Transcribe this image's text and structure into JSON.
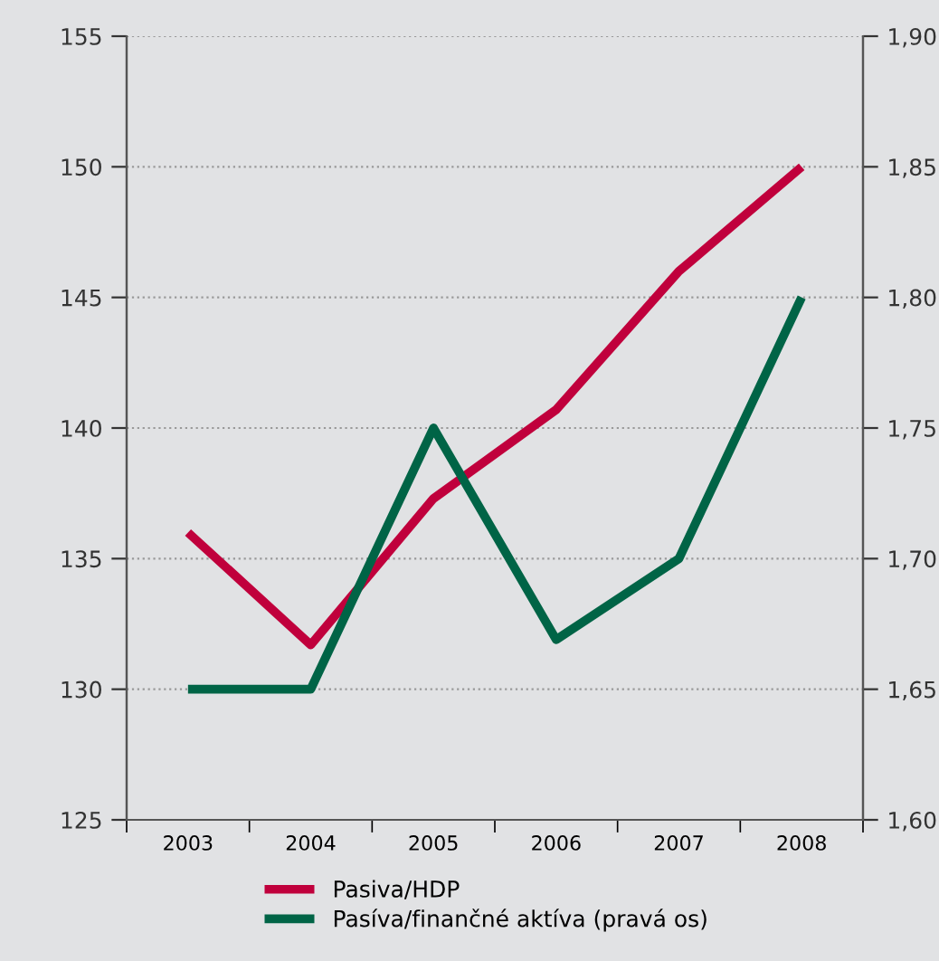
{
  "chart_data": {
    "type": "line",
    "categories": [
      "2003",
      "2004",
      "2005",
      "2006",
      "2007",
      "2008"
    ],
    "series": [
      {
        "name": "Pasiva/HDP",
        "color": "#c0003c",
        "values": [
          136.0,
          131.7,
          137.3,
          140.7,
          146.0,
          150.0
        ]
      },
      {
        "name": "Pasíva/finančné aktíva (pravá os)",
        "color": "#006446",
        "axis": "y2",
        "values": [
          1.65,
          1.65,
          1.75,
          1.669,
          1.7,
          1.8
        ]
      }
    ],
    "ylim": [
      125,
      155
    ],
    "yticks": [
      125,
      130,
      135,
      140,
      145,
      150,
      155
    ],
    "y2lim": [
      1.6,
      1.9
    ],
    "y2ticks": [
      {
        "value": 1.6,
        "label": "1,60"
      },
      {
        "value": 1.65,
        "label": "1,65"
      },
      {
        "value": 1.7,
        "label": "1,70"
      },
      {
        "value": 1.75,
        "label": "1,75"
      },
      {
        "value": 1.8,
        "label": "1,80"
      },
      {
        "value": 1.85,
        "label": "1,85"
      },
      {
        "value": 1.9,
        "label": "1,90"
      }
    ],
    "grid": "y",
    "legend": "bottom",
    "marker": "none",
    "line_style": "solid"
  }
}
